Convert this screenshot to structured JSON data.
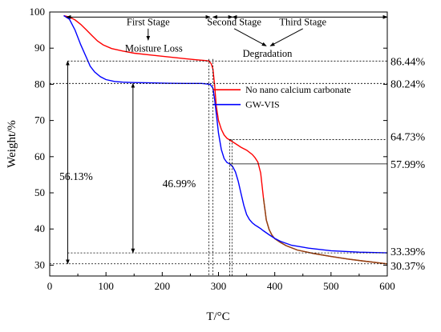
{
  "chart_data": {
    "type": "line",
    "xlabel": "T/°C",
    "ylabel": "Weight/%",
    "xlim": [
      0,
      600
    ],
    "ylim": [
      27,
      100
    ],
    "xticks": [
      0,
      100,
      200,
      300,
      400,
      500,
      600
    ],
    "yticks": [
      30,
      40,
      50,
      60,
      70,
      80,
      90,
      100
    ],
    "grid": false,
    "legend_position": "right",
    "series": [
      {
        "name": "No nano calcium carbonate",
        "color": "#ff0000",
        "x": [
          25,
          35,
          45,
          55,
          65,
          75,
          85,
          95,
          110,
          130,
          150,
          180,
          210,
          240,
          260,
          275,
          283,
          287,
          290,
          293,
          296,
          300,
          305,
          310,
          315,
          320,
          330,
          340,
          350,
          360,
          365,
          370,
          375,
          380,
          385,
          390,
          395,
          400,
          410,
          420,
          440,
          470,
          500,
          530,
          560,
          600
        ],
        "y": [
          99.0,
          98.6,
          97.8,
          96.6,
          95.1,
          93.5,
          92.0,
          90.9,
          89.9,
          89.2,
          88.6,
          88.1,
          87.6,
          87.1,
          86.8,
          86.6,
          86.44,
          85.7,
          84.3,
          80.0,
          74.0,
          70.0,
          67.6,
          66.0,
          65.1,
          64.6,
          63.6,
          62.6,
          61.8,
          60.6,
          59.7,
          58.5,
          55.5,
          48.5,
          42.5,
          39.8,
          38.3,
          37.3,
          36.3,
          35.4,
          34.2,
          33.2,
          32.4,
          31.7,
          31.1,
          30.37
        ],
        "segment_colors": [
          {
            "from_x": 380,
            "to_x": 600,
            "color": "#8b4513"
          }
        ]
      },
      {
        "name": "GW-VIS",
        "color": "#0000ff",
        "x": [
          25,
          35,
          45,
          55,
          65,
          72,
          80,
          90,
          100,
          115,
          130,
          150,
          180,
          210,
          240,
          270,
          285,
          290,
          293,
          296,
          300,
          305,
          310,
          315,
          320,
          325,
          330,
          335,
          340,
          345,
          350,
          355,
          360,
          365,
          370,
          375,
          380,
          390,
          400,
          410,
          430,
          460,
          500,
          550,
          600
        ],
        "y": [
          99.0,
          98.0,
          95.0,
          91.0,
          87.5,
          85.0,
          83.4,
          82.1,
          81.3,
          80.8,
          80.6,
          80.5,
          80.4,
          80.3,
          80.25,
          80.24,
          80.0,
          79.0,
          76.0,
          72.0,
          66.5,
          62.0,
          59.5,
          58.4,
          57.99,
          57.3,
          55.8,
          53.2,
          49.8,
          46.5,
          44.0,
          42.6,
          41.7,
          41.1,
          40.6,
          40.1,
          39.5,
          38.4,
          37.4,
          36.6,
          35.5,
          34.7,
          34.0,
          33.6,
          33.39
        ]
      }
    ],
    "annotations": {
      "stages": [
        {
          "text": "First Stage",
          "x": 175,
          "y": 96.3
        },
        {
          "text": "Moisture Loss",
          "x": 185,
          "y": 89.1
        },
        {
          "text": "Second Stage",
          "x": 328,
          "y": 96.3
        },
        {
          "text": "Third Stage",
          "x": 450,
          "y": 96.3
        },
        {
          "text": "Degradation",
          "x": 387,
          "y": 87.6
        }
      ],
      "right_labels": [
        "86.44%",
        "80.24%",
        "64.73%",
        "57.99%",
        "33.39%",
        "30.37%"
      ],
      "right_values": [
        86.44,
        80.24,
        64.73,
        57.99,
        33.39,
        30.37
      ],
      "drop_labels": [
        {
          "text": "56.13%",
          "x": 47,
          "y": 53.5
        },
        {
          "text": "46.99%",
          "x": 230,
          "y": 51.5
        }
      ]
    }
  }
}
